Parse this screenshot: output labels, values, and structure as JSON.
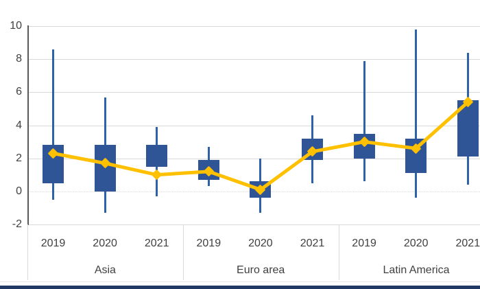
{
  "chart_data": {
    "type": "stock-hilo-box-line",
    "title": "",
    "groups": [
      "Asia",
      "Euro area",
      "Latin America"
    ],
    "years": [
      "2019",
      "2020",
      "2021"
    ],
    "categories": [
      "Asia 2019",
      "Asia 2020",
      "Asia 2021",
      "Euro area 2019",
      "Euro area 2020",
      "Euro area 2021",
      "Latin America 2019",
      "Latin America 2020",
      "Latin America 2021"
    ],
    "series": [
      {
        "name": "high",
        "values": [
          8.6,
          5.7,
          3.9,
          2.7,
          2.0,
          4.6,
          7.9,
          9.8,
          8.4
        ]
      },
      {
        "name": "low",
        "values": [
          -0.5,
          -1.3,
          -0.3,
          0.3,
          -1.3,
          0.5,
          0.6,
          -0.4,
          0.4
        ]
      },
      {
        "name": "box_top",
        "values": [
          2.8,
          2.8,
          2.8,
          1.9,
          0.6,
          3.2,
          3.5,
          3.2,
          5.5
        ]
      },
      {
        "name": "box_bottom",
        "values": [
          0.5,
          0.0,
          1.5,
          0.7,
          -0.4,
          1.9,
          2.0,
          1.1,
          2.1
        ]
      },
      {
        "name": "point",
        "values": [
          2.3,
          1.7,
          1.0,
          1.2,
          0.1,
          2.4,
          3.0,
          2.6,
          5.4
        ]
      }
    ],
    "ylim": [
      -2,
      10
    ],
    "yticks": [
      10,
      8,
      6,
      4,
      2,
      0,
      -2
    ],
    "zero_gridline_style": "dotted",
    "grid": true,
    "legend": "none",
    "xlabel": "",
    "ylabel": ""
  },
  "colors": {
    "box": "#2f5597",
    "whisker": "#2e62a8",
    "line": "#ffc000",
    "gridline": "#d9d9d9",
    "axis_line": "#595959",
    "text": "#404040",
    "bottom_bar": "#1f3864",
    "background": "#ffffff"
  }
}
